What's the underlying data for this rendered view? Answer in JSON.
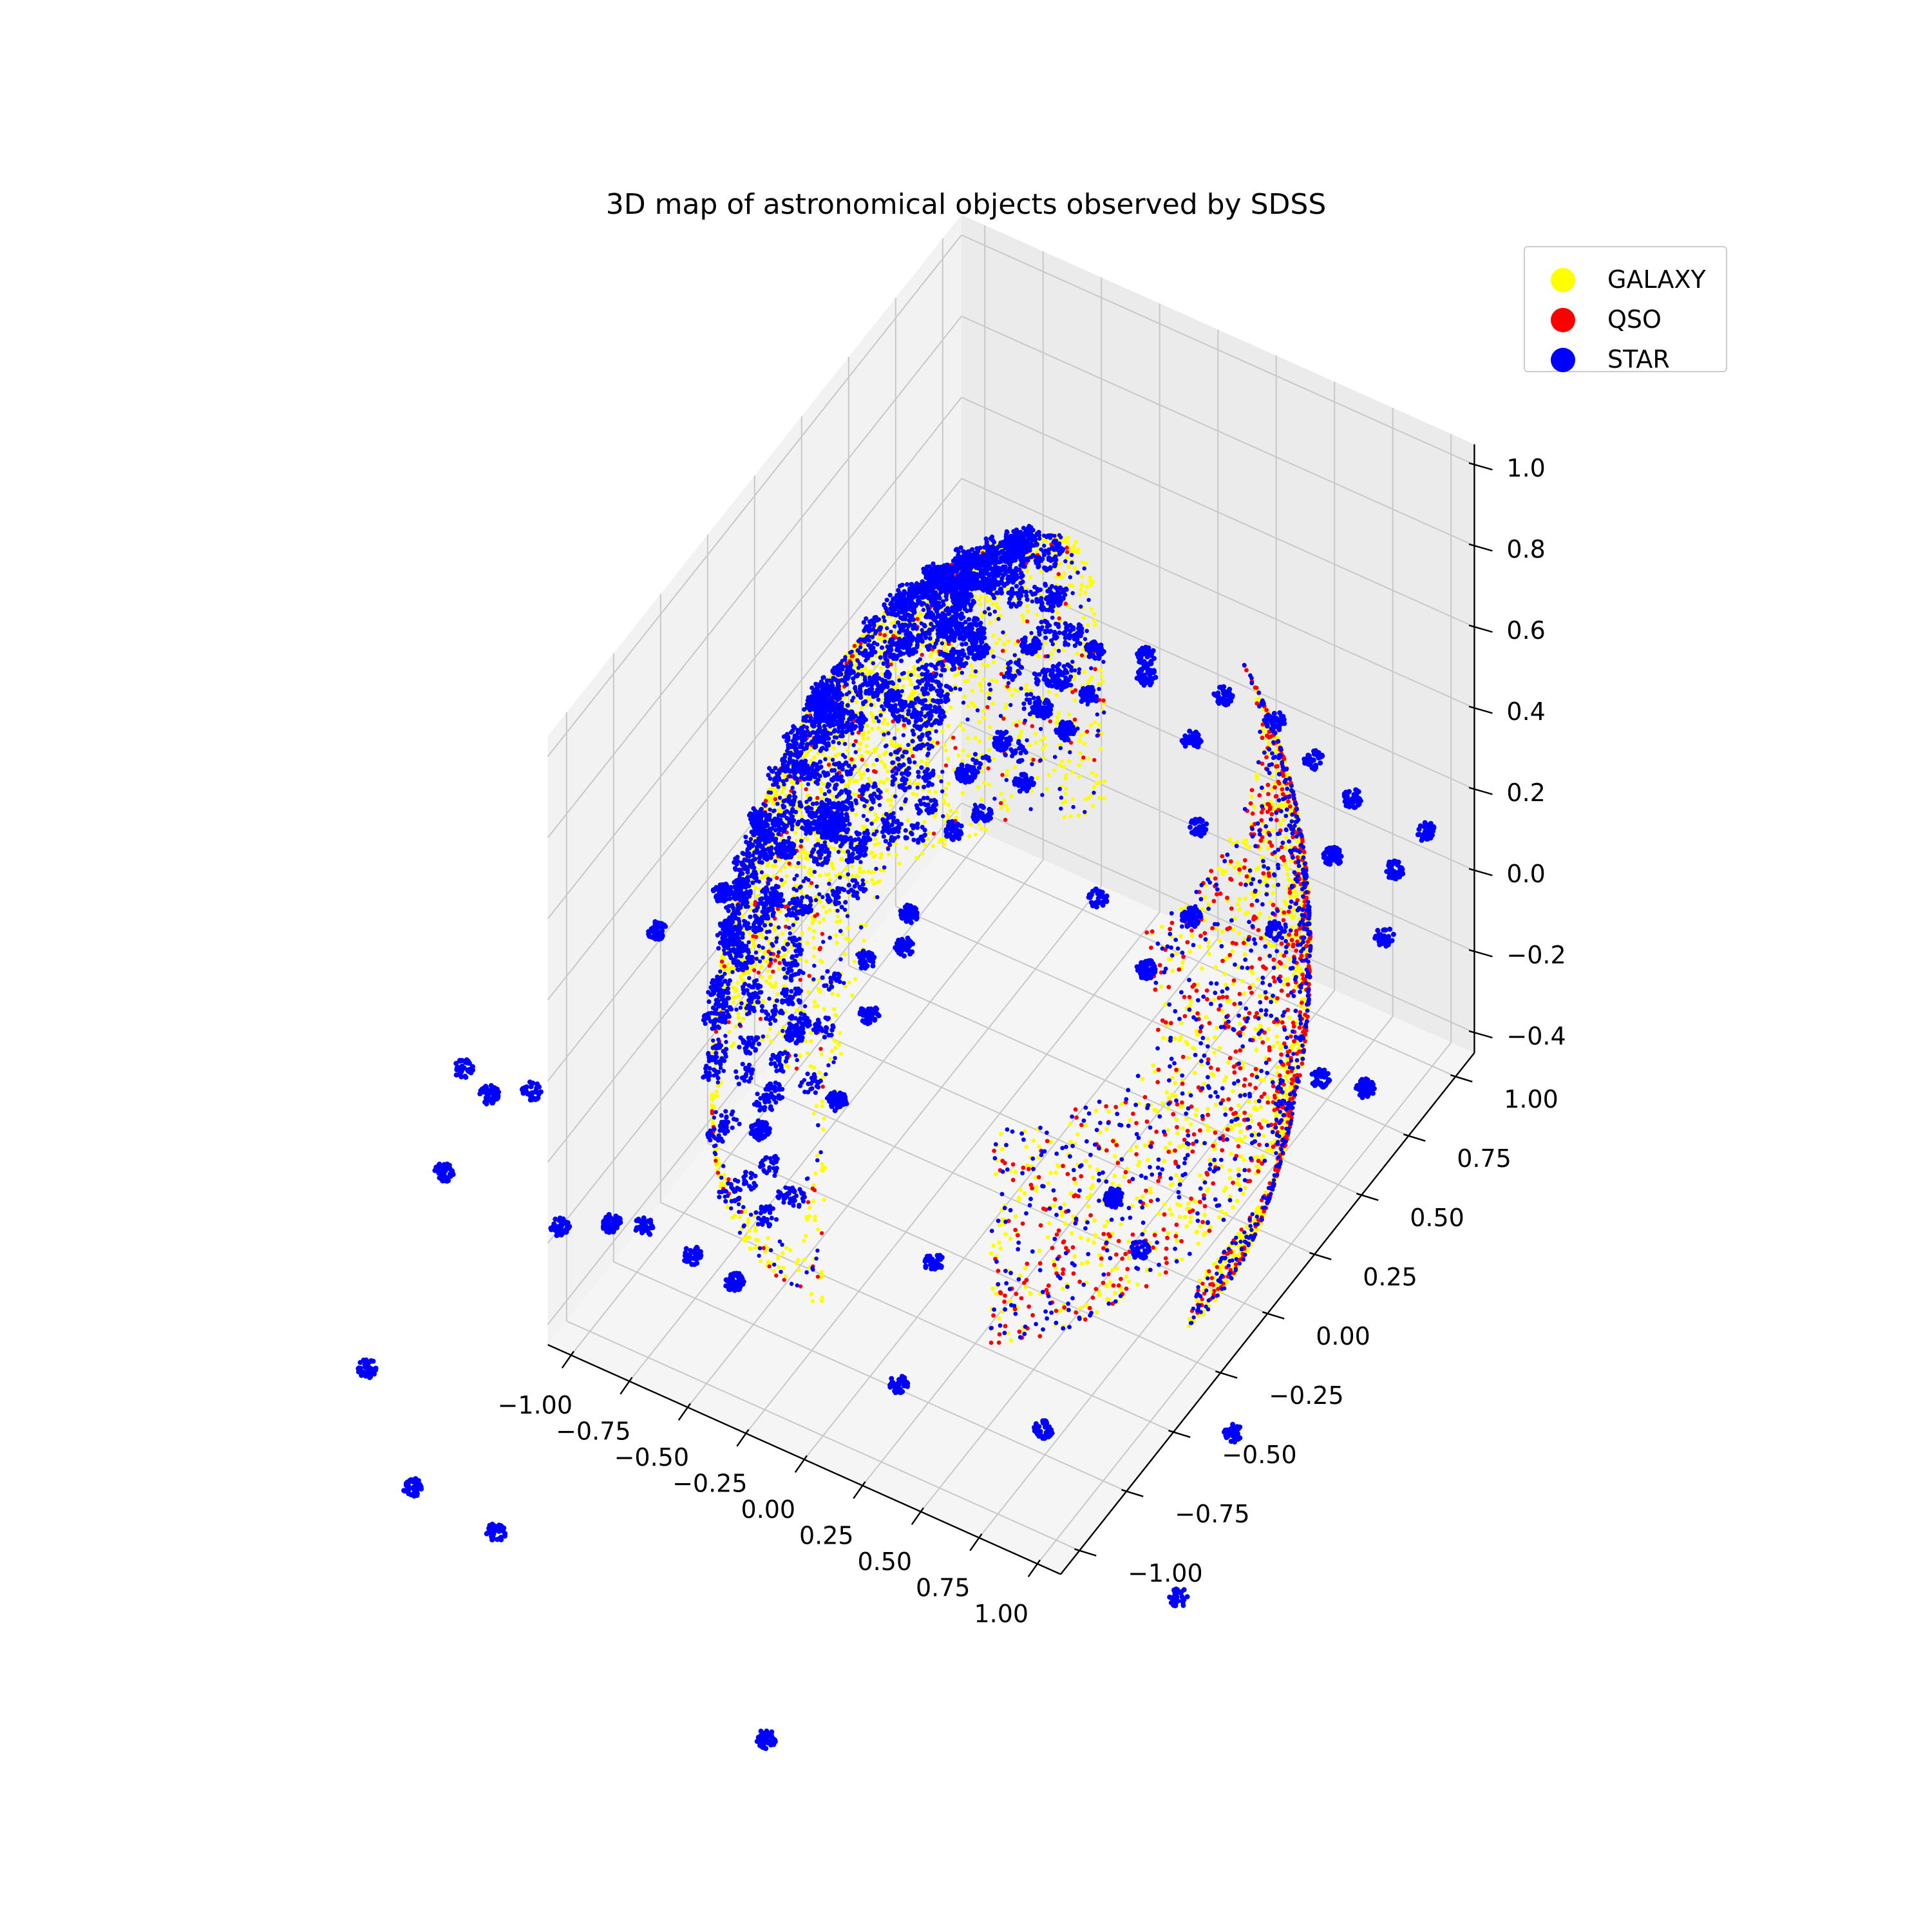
{
  "chart_data": {
    "type": "scatter",
    "projection": "3d",
    "title": "3D map of astronomical objects observed by SDSS",
    "xlim": [
      -1.1,
      1.1
    ],
    "ylim": [
      -1.1,
      1.1
    ],
    "zlim": [
      -0.45,
      1.05
    ],
    "x_ticks": [
      "−1.00",
      "−0.75",
      "−0.50",
      "−0.25",
      "0.00",
      "0.25",
      "0.50",
      "0.75",
      "1.00"
    ],
    "y_ticks": [
      "−1.00",
      "−0.75",
      "−0.50",
      "−0.25",
      "0.00",
      "0.25",
      "0.50",
      "0.75",
      "1.00"
    ],
    "z_ticks": [
      "−0.4",
      "−0.2",
      "0.0",
      "0.2",
      "0.4",
      "0.6",
      "0.8",
      "1.0"
    ],
    "grid": true,
    "legend_position": "top-right",
    "series": [
      {
        "name": "GALAXY",
        "color": "#ffff00"
      },
      {
        "name": "QSO",
        "color": "#ff0000"
      },
      {
        "name": "STAR",
        "color": "#0000ff"
      }
    ],
    "shape": "unit sphere surface, points concentrated in SDSS survey footprints"
  }
}
